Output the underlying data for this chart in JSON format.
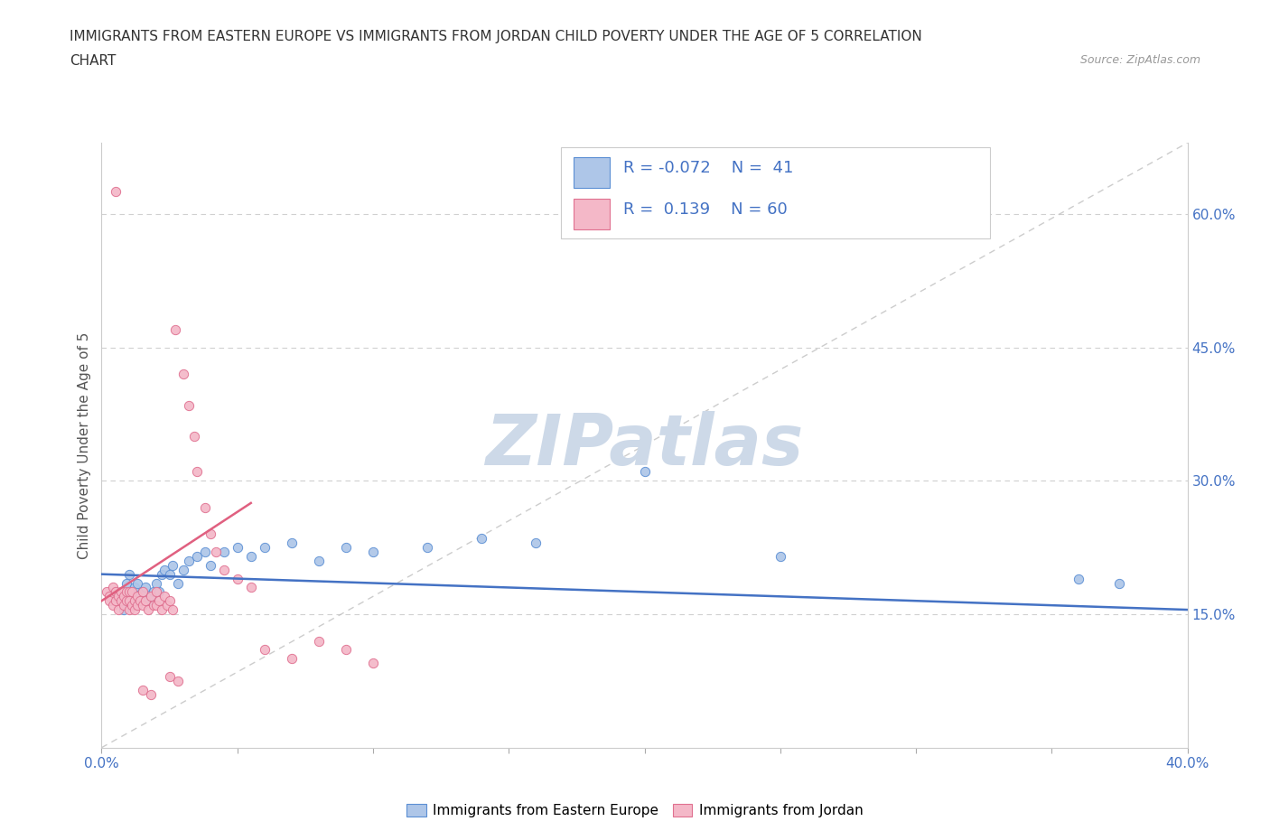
{
  "title_line1": "IMMIGRANTS FROM EASTERN EUROPE VS IMMIGRANTS FROM JORDAN CHILD POVERTY UNDER THE AGE OF 5 CORRELATION",
  "title_line2": "CHART",
  "source": "Source: ZipAtlas.com",
  "ylabel": "Child Poverty Under the Age of 5",
  "xlim": [
    0.0,
    0.4
  ],
  "ylim": [
    0.0,
    0.68
  ],
  "x_ticks": [
    0.0,
    0.05,
    0.1,
    0.15,
    0.2,
    0.25,
    0.3,
    0.35,
    0.4
  ],
  "y_ticks_right": [
    0.15,
    0.3,
    0.45,
    0.6
  ],
  "y_tick_labels_right": [
    "15.0%",
    "30.0%",
    "45.0%",
    "60.0%"
  ],
  "color_blue": "#aec6e8",
  "color_pink": "#f4b8c8",
  "color_blue_edge": "#5b8fd4",
  "color_pink_edge": "#e07090",
  "color_blue_line": "#4472c4",
  "color_pink_line": "#e06080",
  "watermark": "ZIPatlas",
  "watermark_color": "#cdd9e8",
  "blue_scatter_x": [
    0.005,
    0.007,
    0.008,
    0.009,
    0.01,
    0.01,
    0.012,
    0.013,
    0.014,
    0.015,
    0.016,
    0.017,
    0.018,
    0.019,
    0.02,
    0.021,
    0.022,
    0.023,
    0.025,
    0.026,
    0.028,
    0.03,
    0.032,
    0.035,
    0.038,
    0.04,
    0.045,
    0.05,
    0.055,
    0.06,
    0.07,
    0.08,
    0.09,
    0.1,
    0.12,
    0.14,
    0.16,
    0.2,
    0.25,
    0.36,
    0.375
  ],
  "blue_scatter_y": [
    0.175,
    0.165,
    0.155,
    0.185,
    0.195,
    0.175,
    0.18,
    0.185,
    0.17,
    0.175,
    0.18,
    0.165,
    0.17,
    0.175,
    0.185,
    0.175,
    0.195,
    0.2,
    0.195,
    0.205,
    0.185,
    0.2,
    0.21,
    0.215,
    0.22,
    0.205,
    0.22,
    0.225,
    0.215,
    0.225,
    0.23,
    0.21,
    0.225,
    0.22,
    0.225,
    0.235,
    0.23,
    0.31,
    0.215,
    0.19,
    0.185
  ],
  "pink_scatter_x": [
    0.002,
    0.003,
    0.003,
    0.004,
    0.004,
    0.005,
    0.005,
    0.005,
    0.006,
    0.006,
    0.007,
    0.007,
    0.008,
    0.008,
    0.009,
    0.009,
    0.01,
    0.01,
    0.01,
    0.011,
    0.011,
    0.012,
    0.012,
    0.013,
    0.013,
    0.014,
    0.015,
    0.015,
    0.016,
    0.017,
    0.018,
    0.019,
    0.02,
    0.02,
    0.021,
    0.022,
    0.023,
    0.024,
    0.025,
    0.026,
    0.027,
    0.03,
    0.032,
    0.034,
    0.035,
    0.038,
    0.04,
    0.042,
    0.045,
    0.05,
    0.055,
    0.06,
    0.07,
    0.08,
    0.09,
    0.1,
    0.025,
    0.028,
    0.015,
    0.018
  ],
  "pink_scatter_y": [
    0.175,
    0.17,
    0.165,
    0.18,
    0.16,
    0.175,
    0.165,
    0.625,
    0.17,
    0.155,
    0.175,
    0.165,
    0.17,
    0.16,
    0.175,
    0.165,
    0.175,
    0.165,
    0.155,
    0.175,
    0.16,
    0.165,
    0.155,
    0.17,
    0.16,
    0.165,
    0.175,
    0.16,
    0.165,
    0.155,
    0.17,
    0.16,
    0.175,
    0.16,
    0.165,
    0.155,
    0.17,
    0.16,
    0.165,
    0.155,
    0.47,
    0.42,
    0.385,
    0.35,
    0.31,
    0.27,
    0.24,
    0.22,
    0.2,
    0.19,
    0.18,
    0.11,
    0.1,
    0.12,
    0.11,
    0.095,
    0.08,
    0.075,
    0.065,
    0.06
  ],
  "blue_trend_x": [
    0.0,
    0.4
  ],
  "blue_trend_y": [
    0.195,
    0.155
  ],
  "pink_trend_x": [
    0.0,
    0.055
  ],
  "pink_trend_y": [
    0.165,
    0.275
  ]
}
